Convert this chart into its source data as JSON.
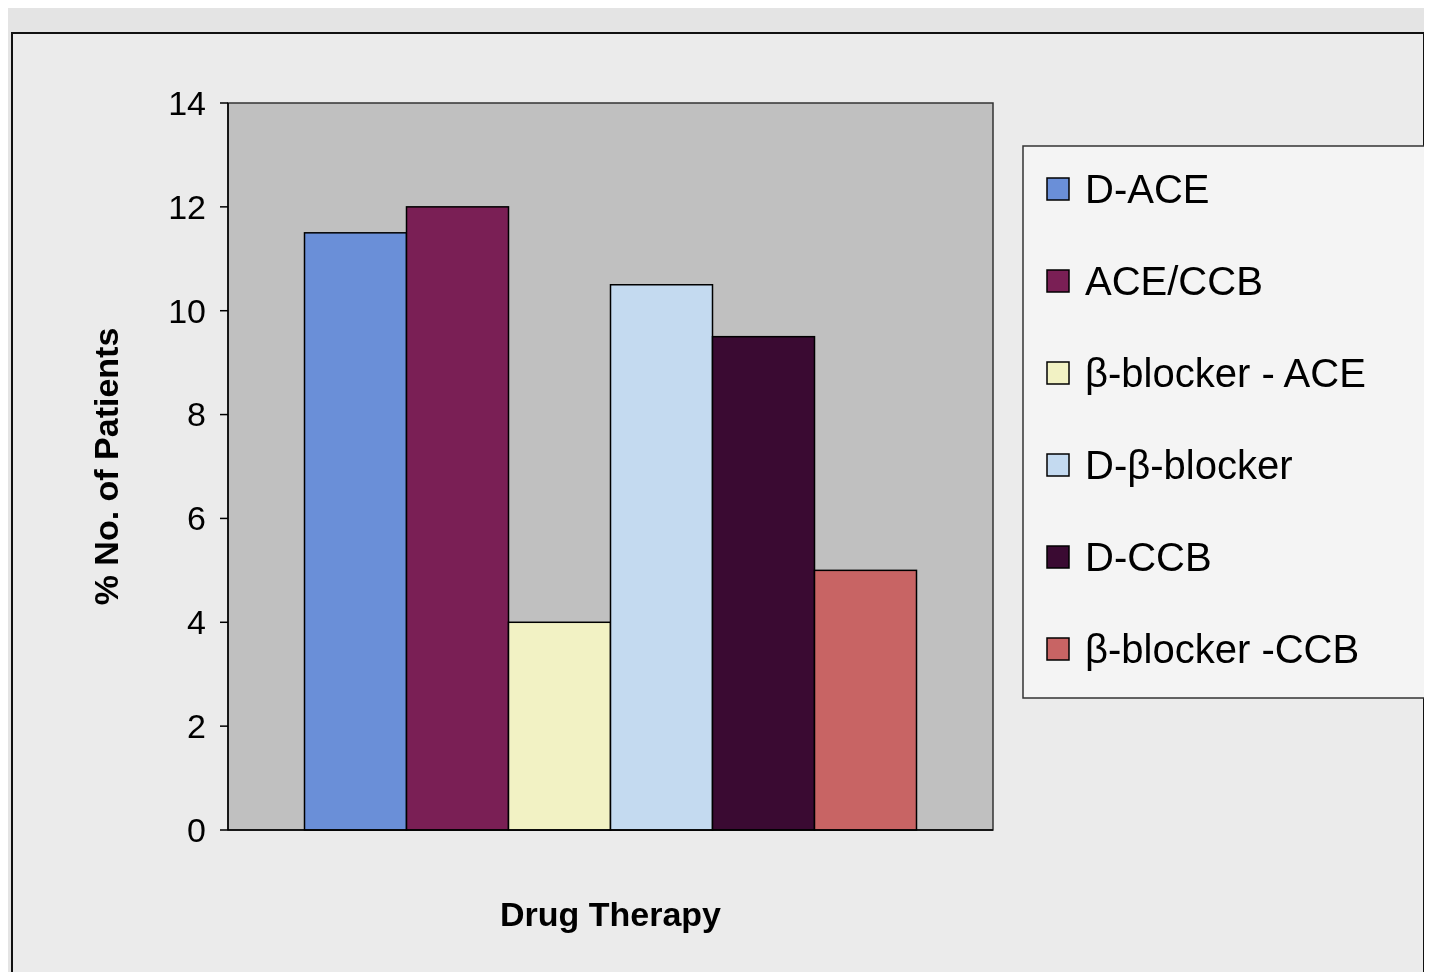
{
  "chart_data": {
    "type": "bar",
    "xlabel": "Drug Therapy",
    "ylabel": "% No. of Patients",
    "categories": [
      null
    ],
    "ylim": [
      0,
      14
    ],
    "yticks": [
      0,
      2,
      4,
      6,
      8,
      10,
      12,
      14
    ],
    "legend": "right",
    "series": [
      {
        "name": "D-ACE",
        "color": "#6a8fd8",
        "values": [
          11.5
        ]
      },
      {
        "name": "ACE/CCB",
        "color": "#7a1f55",
        "values": [
          12
        ]
      },
      {
        "name": "β-blocker - ACE",
        "color": "#f2f2c4",
        "values": [
          4
        ]
      },
      {
        "name": "D-β-blocker",
        "color": "#c4daf0",
        "values": [
          10.5
        ]
      },
      {
        "name": "D-CCB",
        "color": "#3a0a32",
        "values": [
          9.5
        ]
      },
      {
        "name": "β-blocker -CCB",
        "color": "#c86464",
        "values": [
          5
        ]
      }
    ]
  }
}
